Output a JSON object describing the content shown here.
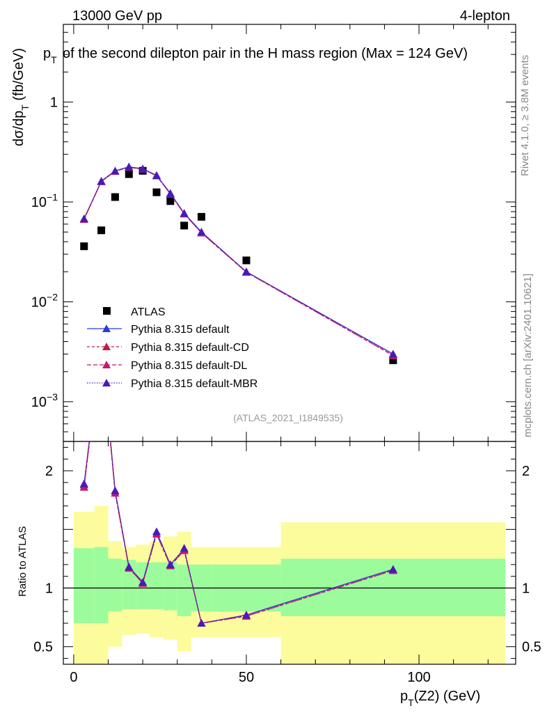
{
  "header": {
    "left": "13000 GeV pp",
    "right": "4-lepton",
    "title": "p_T of the second dilepton pair in the H mass region (Max = 124 GeV)"
  },
  "side": {
    "rivet": "Rivet 4.1.0, ≥ 3.8M events",
    "mcplots": "mcplots.cern.ch [arXiv:2401.10621]"
  },
  "analysis_tag": "(ATLAS_2021_I1849535)",
  "legend": {
    "atlas": "ATLAS",
    "default": "Pythia 8.315 default",
    "cd": "Pythia 8.315 default-CD",
    "dl": "Pythia 8.315 default-DL",
    "mbr": "Pythia 8.315 default-MBR"
  },
  "colors": {
    "data": "#000000",
    "default": "#2b3bd6",
    "cd": "#c21a4a",
    "dl": "#c2186f",
    "mbr": "#4a1ab8",
    "band_stat": "#9cfc9c",
    "band_total": "#fcfc9c"
  },
  "chart_data": [
    {
      "type": "scatter",
      "name": "main",
      "title": "p_T of the second dilepton pair in the H mass region (Max = 124 GeV)",
      "xlabel": "p_T(Z2) (GeV)",
      "ylabel": "dσ/dp_T (fb/GeV)",
      "yscale": "log",
      "xlim": [
        -3,
        128
      ],
      "ylim": [
        0.0004,
        6
      ],
      "yticks_major": [
        0.001,
        0.01,
        0.1,
        1
      ],
      "ytick_labels": [
        "10^-3",
        "10^-2",
        "10^-1",
        "1"
      ],
      "x": [
        3,
        8,
        12,
        16,
        20,
        24,
        28,
        32,
        37,
        50,
        92.5
      ],
      "series": [
        {
          "name": "ATLAS",
          "values": [
            0.036,
            0.052,
            0.112,
            0.19,
            0.205,
            0.125,
            0.102,
            0.058,
            0.071,
            0.026,
            0.0026
          ]
        },
        {
          "name": "Pythia 8.315 default",
          "values": [
            0.068,
            0.162,
            0.205,
            0.225,
            0.215,
            0.185,
            0.122,
            0.077,
            0.05,
            0.02,
            0.003
          ]
        },
        {
          "name": "Pythia 8.315 default-CD",
          "values": [
            0.067,
            0.16,
            0.203,
            0.222,
            0.213,
            0.183,
            0.12,
            0.076,
            0.049,
            0.0198,
            0.0029
          ]
        },
        {
          "name": "Pythia 8.315 default-DL",
          "values": [
            0.067,
            0.16,
            0.203,
            0.222,
            0.213,
            0.183,
            0.12,
            0.076,
            0.049,
            0.0198,
            0.0029
          ]
        },
        {
          "name": "Pythia 8.315 default-MBR",
          "values": [
            0.068,
            0.161,
            0.204,
            0.224,
            0.214,
            0.184,
            0.121,
            0.077,
            0.05,
            0.02,
            0.003
          ]
        }
      ]
    },
    {
      "type": "line",
      "name": "ratio",
      "ylabel": "Ratio to ATLAS",
      "xlabel": "p_T(Z2) (GeV)",
      "xlim": [
        -3,
        128
      ],
      "ylim": [
        0.35,
        2.25
      ],
      "yticks_major": [
        0.5,
        1,
        2
      ],
      "xticks_major": [
        0,
        50,
        100
      ],
      "x": [
        3,
        8,
        12,
        16,
        20,
        24,
        28,
        32,
        37,
        50,
        92.5
      ],
      "series": [
        {
          "name": "Pythia 8.315 default",
          "values": [
            1.88,
            3.1,
            1.83,
            1.18,
            1.05,
            1.48,
            1.2,
            1.33,
            0.7,
            0.77,
            1.16
          ]
        },
        {
          "name": "Pythia 8.315 default-CD",
          "values": [
            1.86,
            3.08,
            1.81,
            1.17,
            1.04,
            1.46,
            1.19,
            1.32,
            0.7,
            0.76,
            1.15
          ]
        },
        {
          "name": "Pythia 8.315 default-DL",
          "values": [
            1.86,
            3.08,
            1.81,
            1.17,
            1.04,
            1.46,
            1.19,
            1.32,
            0.7,
            0.76,
            1.15
          ]
        },
        {
          "name": "Pythia 8.315 default-MBR",
          "values": [
            1.89,
            3.1,
            1.83,
            1.18,
            1.05,
            1.48,
            1.2,
            1.34,
            0.7,
            0.77,
            1.16
          ]
        }
      ],
      "bands": {
        "edges": [
          0,
          6,
          10,
          14,
          18,
          22,
          26,
          30,
          34,
          40,
          60,
          125
        ],
        "stat_lo": [
          0.7,
          0.7,
          0.8,
          0.82,
          0.82,
          0.82,
          0.81,
          0.76,
          0.8,
          0.8,
          0.76
        ],
        "stat_hi": [
          1.34,
          1.35,
          1.25,
          1.24,
          1.22,
          1.22,
          1.22,
          1.2,
          1.2,
          1.2,
          1.25
        ],
        "total_lo": [
          0.35,
          0.35,
          0.5,
          0.6,
          0.61,
          0.58,
          0.56,
          0.46,
          0.58,
          0.58,
          0.35
        ],
        "total_hi": [
          1.65,
          1.7,
          1.4,
          1.35,
          1.37,
          1.4,
          1.44,
          1.48,
          1.35,
          1.35,
          1.56
        ]
      }
    }
  ]
}
